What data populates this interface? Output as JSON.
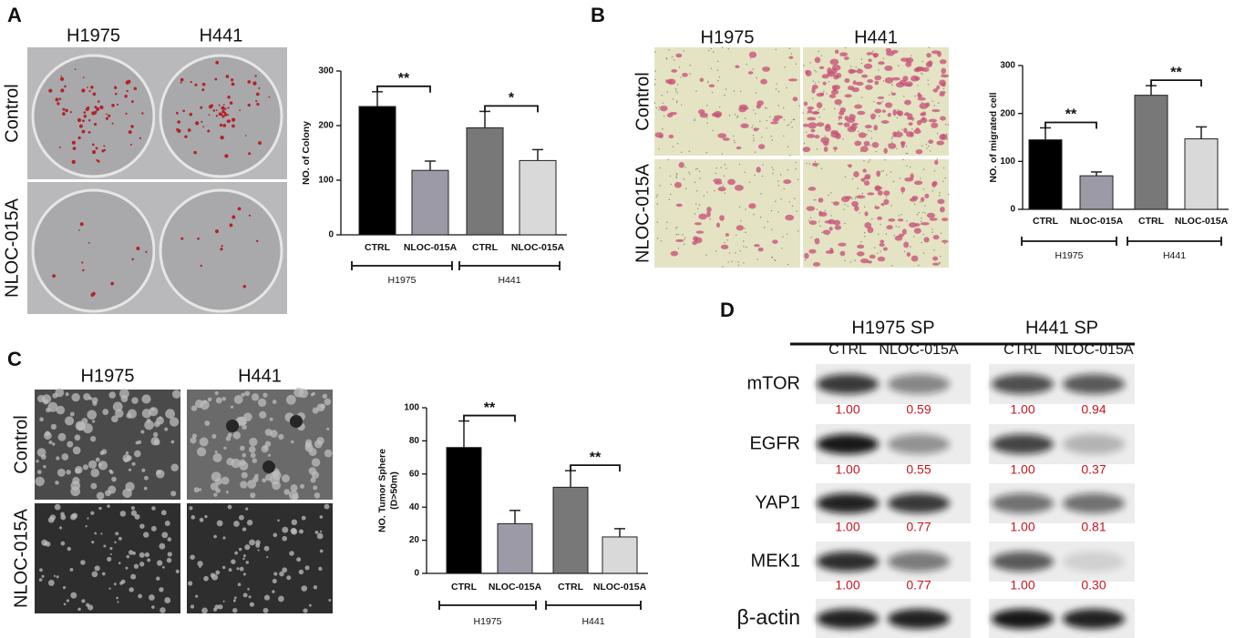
{
  "panels": [
    {
      "letter": "A",
      "columns": [
        "H1975",
        "H441"
      ],
      "rows": [
        "Control",
        "NLOC-015A"
      ]
    },
    {
      "letter": "B",
      "columns": [
        "H1975",
        "H441"
      ],
      "rows": [
        "Control",
        "NLOC-015A"
      ]
    },
    {
      "letter": "C",
      "columns": [
        "H1975",
        "H441"
      ],
      "rows": [
        "Control",
        "NLOC-015A"
      ]
    },
    {
      "letter": "D"
    }
  ],
  "chart_data": [
    {
      "type": "bar",
      "y_label": "NO. of Colony",
      "categories": [
        "CTRL",
        "NLOC-015A",
        "CTRL",
        "NLOC-015A"
      ],
      "values": [
        235,
        118,
        196,
        136
      ],
      "errors": [
        27,
        17,
        30,
        20
      ],
      "colors": [
        "#000000",
        "#9b9aa6",
        "#787878",
        "#d9d9d9"
      ],
      "groups": [
        "H1975",
        "H441"
      ],
      "significance": [
        "**",
        "*"
      ],
      "ylim": [
        0,
        300
      ],
      "yticks": [
        0,
        100,
        200,
        300
      ]
    },
    {
      "type": "bar",
      "y_label": "NO. of migrated cell",
      "categories": [
        "CTRL",
        "NLOC-015A",
        "CTRL",
        "NLOC-015A"
      ],
      "values": [
        145,
        70,
        238,
        147
      ],
      "errors": [
        25,
        8,
        20,
        25
      ],
      "colors": [
        "#000000",
        "#9b9aa6",
        "#787878",
        "#d9d9d9"
      ],
      "groups": [
        "H1975",
        "H441"
      ],
      "significance": [
        "**",
        "**"
      ],
      "ylim": [
        0,
        300
      ],
      "yticks": [
        0,
        100,
        200,
        300
      ]
    },
    {
      "type": "bar",
      "y_label": [
        "NO. Tumor Sphere",
        "(D>50m)"
      ],
      "categories": [
        "CTRL",
        "NLOC-015A",
        "CTRL",
        "NLOC-015A"
      ],
      "values": [
        76,
        30,
        52,
        22
      ],
      "errors": [
        16,
        8,
        10,
        5
      ],
      "colors": [
        "#000000",
        "#9b9aa6",
        "#787878",
        "#d9d9d9"
      ],
      "groups": [
        "H1975",
        "H441"
      ],
      "significance": [
        "**",
        "**"
      ],
      "ylim": [
        0,
        100
      ],
      "yticks": [
        0,
        20,
        40,
        60,
        80,
        100
      ]
    }
  ],
  "blot": {
    "groups": [
      {
        "title": "H1975 SP",
        "lanes": [
          "CTRL",
          "NLOC-015A"
        ]
      },
      {
        "title": "H441 SP",
        "lanes": [
          "CTRL",
          "NLOC-015A"
        ]
      }
    ],
    "rows": [
      {
        "protein": "mTOR",
        "values": [
          "1.00",
          "0.59",
          "1.00",
          "0.94"
        ]
      },
      {
        "protein": "EGFR",
        "values": [
          "1.00",
          "0.55",
          "1.00",
          "0.37"
        ]
      },
      {
        "protein": "YAP1",
        "values": [
          "1.00",
          "0.77",
          "1.00",
          "0.81"
        ]
      },
      {
        "protein": "MEK1",
        "values": [
          "1.00",
          "0.77",
          "1.00",
          "0.30"
        ]
      },
      {
        "protein": "β-actin"
      }
    ]
  }
}
